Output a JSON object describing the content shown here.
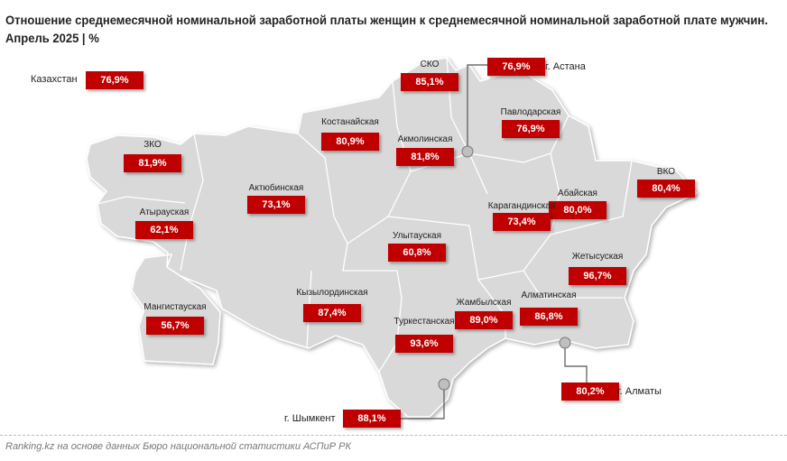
{
  "title": "Отношение среднемесячной номинальной заработной платы женщин к среднемесячной номинальной заработной плате мужчин.",
  "subtitle": "Апрель 2025 | %",
  "total": {
    "label": "Казахстан",
    "value": "76,9%"
  },
  "regions": [
    {
      "name": "СКО",
      "value": "85,1%"
    },
    {
      "name": "Костанайская",
      "value": "80,9%"
    },
    {
      "name": "Акмолинская",
      "value": "81,8%"
    },
    {
      "name": "Павлодарская",
      "value": "76,9%"
    },
    {
      "name": "ЗКО",
      "value": "81,9%"
    },
    {
      "name": "Актюбинская",
      "value": "73,1%"
    },
    {
      "name": "ВКО",
      "value": "80,4%"
    },
    {
      "name": "Абайская",
      "value": "80,0%"
    },
    {
      "name": "Карагандинская",
      "value": "73,4%"
    },
    {
      "name": "Атырауская",
      "value": "62,1%"
    },
    {
      "name": "Улытауская",
      "value": "60,8%"
    },
    {
      "name": "Жетысуская",
      "value": "96,7%"
    },
    {
      "name": "Мангистауская",
      "value": "56,7%"
    },
    {
      "name": "Кызылординская",
      "value": "87,4%"
    },
    {
      "name": "Жамбылская",
      "value": "89,0%"
    },
    {
      "name": "Алматинская",
      "value": "86,8%"
    },
    {
      "name": "Туркестанская",
      "value": "93,6%"
    }
  ],
  "cities": [
    {
      "name": "г. Астана",
      "value": "76,9%"
    },
    {
      "name": "г. Алматы",
      "value": "80,2%"
    },
    {
      "name": "г. Шымкент",
      "value": "88,1%"
    }
  ],
  "colors": {
    "map_fill": "#d9d9d9",
    "label_bg": "#c00000",
    "label_text": "#ffffff"
  },
  "footer": "Ranking.kz на основе данных Бюро национальной статистики АСПиР РК"
}
